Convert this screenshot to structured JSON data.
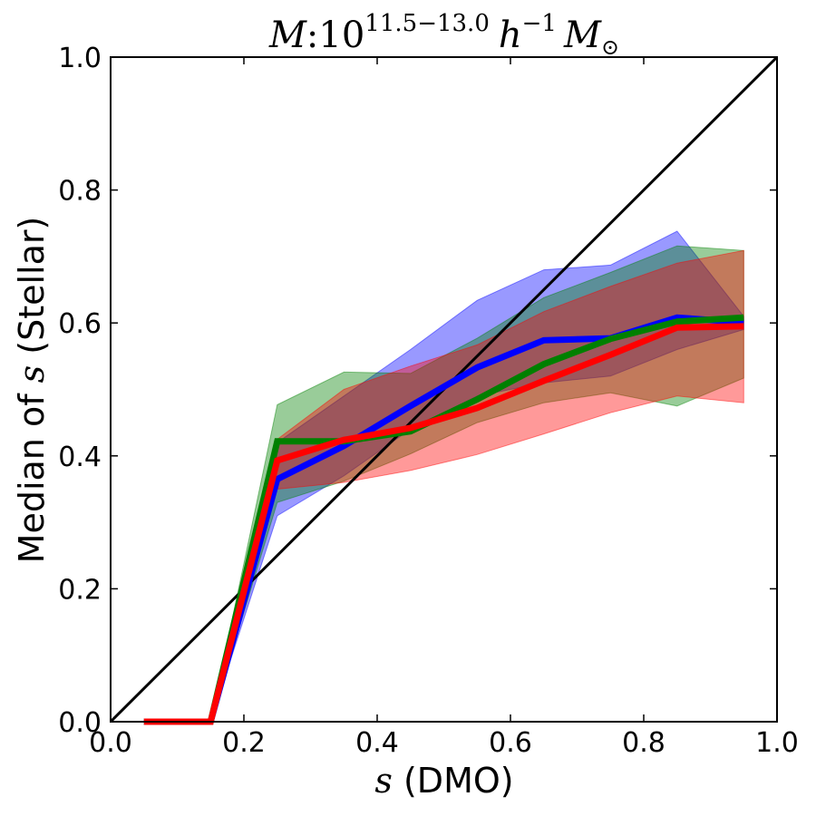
{
  "chart_data": {
    "type": "line",
    "title": {
      "prefix": "M",
      "colon": ":",
      "base": "10",
      "exponent": "11.5−13.0",
      "h_symbol": "h",
      "h_exponent": "−1",
      "mass_symbol": "M",
      "sun_symbol": "⊙"
    },
    "xlabel": {
      "symbol": "s",
      "text": " (DMO)"
    },
    "ylabel": {
      "prefix": "Median of ",
      "symbol": "s",
      "suffix": " (Stellar)"
    },
    "xlim": [
      0.0,
      1.0
    ],
    "ylim": [
      0.0,
      1.0
    ],
    "xticks": [
      0.0,
      0.2,
      0.4,
      0.6,
      0.8,
      1.0
    ],
    "yticks": [
      0.0,
      0.2,
      0.4,
      0.6,
      0.8,
      1.0
    ],
    "xtick_labels": [
      "0.0",
      "0.2",
      "0.4",
      "0.6",
      "0.8",
      "1.0"
    ],
    "ytick_labels": [
      "0.0",
      "0.2",
      "0.4",
      "0.6",
      "0.8",
      "1.0"
    ],
    "x": [
      0.05,
      0.15,
      0.25,
      0.35,
      0.45,
      0.55,
      0.65,
      0.75,
      0.85,
      0.95
    ],
    "reference_line": {
      "name": "one-to-one",
      "x": [
        0.0,
        1.0
      ],
      "y": [
        0.0,
        1.0
      ],
      "color": "#000000"
    },
    "series": [
      {
        "name": "blue",
        "color": "#0000ff",
        "values": [
          0.0,
          0.0,
          0.365,
          0.415,
          0.475,
          0.533,
          0.574,
          0.577,
          0.608,
          0.601
        ],
        "band_lower": [
          0.0,
          0.0,
          0.31,
          0.37,
          0.44,
          0.49,
          0.51,
          0.52,
          0.56,
          0.59
        ],
        "band_upper": [
          0.0,
          0.0,
          0.42,
          0.49,
          0.56,
          0.634,
          0.68,
          0.687,
          0.738,
          0.61
        ]
      },
      {
        "name": "green",
        "color": "#008000",
        "values": [
          0.0,
          0.0,
          0.422,
          0.422,
          0.437,
          0.485,
          0.538,
          0.576,
          0.602,
          0.608
        ],
        "band_lower": [
          0.0,
          0.0,
          0.33,
          0.362,
          0.403,
          0.45,
          0.48,
          0.495,
          0.475,
          0.517
        ],
        "band_upper": [
          0.0,
          0.0,
          0.477,
          0.526,
          0.524,
          0.577,
          0.638,
          0.676,
          0.716,
          0.709
        ]
      },
      {
        "name": "red",
        "color": "#ff0000",
        "values": [
          0.0,
          0.0,
          0.393,
          0.424,
          0.442,
          0.472,
          0.513,
          0.552,
          0.593,
          0.595
        ],
        "band_lower": [
          0.0,
          0.0,
          0.35,
          0.36,
          0.378,
          0.402,
          0.433,
          0.465,
          0.49,
          0.48
        ],
        "band_upper": [
          0.0,
          0.0,
          0.425,
          0.5,
          0.535,
          0.567,
          0.617,
          0.655,
          0.69,
          0.709
        ]
      }
    ]
  }
}
